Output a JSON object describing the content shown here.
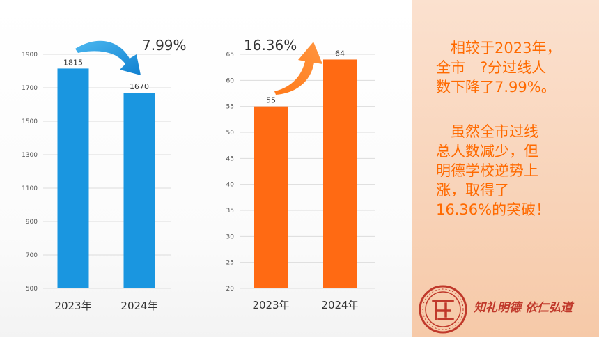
{
  "chart_data": [
    {
      "type": "bar",
      "categories": [
        "2023年",
        "2024年"
      ],
      "values": [
        1815,
        1670
      ],
      "ylim": [
        500,
        1900
      ],
      "yticks": [
        500,
        700,
        900,
        1100,
        1300,
        1500,
        1700,
        1900
      ],
      "grid": true,
      "color": "#1a96e0",
      "annotation": "7.99%"
    },
    {
      "type": "bar",
      "categories": [
        "2023年",
        "2024年"
      ],
      "values": [
        55,
        64
      ],
      "ylim": [
        20,
        65
      ],
      "yticks": [
        20,
        25,
        30,
        35,
        40,
        45,
        50,
        55,
        60,
        65
      ],
      "grid": true,
      "color": "#ff6a13",
      "annotation": "16.36%"
    }
  ],
  "text": {
    "para1": [
      "　相较于2023年，",
      "全市　?分过线人",
      "数下降了7.99%。"
    ],
    "para2": [
      "　虽然全市过线",
      "总人数减少，但",
      "明德学校逆势上",
      "涨，取得了",
      "16.36%的突破！"
    ],
    "motto": "知礼明德 依仁弘道"
  },
  "colors": {
    "accent": "#ff6a00",
    "motto": "#c0392b",
    "panel": "#f8d3b8"
  },
  "icons": {
    "logo": "school-seal-icon"
  }
}
